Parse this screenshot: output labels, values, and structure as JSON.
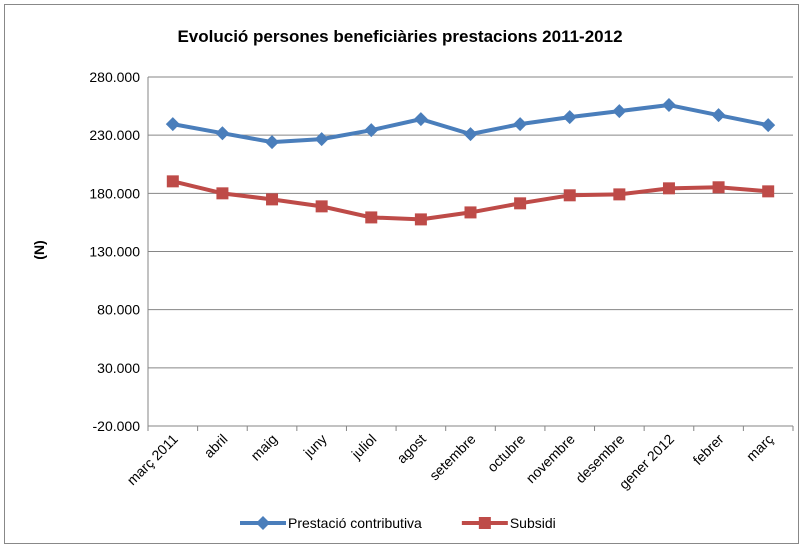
{
  "chart_data": {
    "type": "line",
    "title": "Evolució persones beneficiàries prestacions 2011-2012",
    "y_label": "(N)",
    "categories": [
      "març 2011",
      "abril",
      "maig",
      "juny",
      "juliol",
      "agost",
      "setembre",
      "octubre",
      "novembre",
      "desembre",
      "gener 2012",
      "febrer",
      "març"
    ],
    "series": [
      {
        "name": "Prestació contributiva",
        "color": "#4a7ebb",
        "marker": "diamond",
        "values": [
          239500,
          231700,
          224000,
          226600,
          234300,
          243800,
          230900,
          239500,
          245500,
          250700,
          255900,
          247200,
          238600
        ]
      },
      {
        "name": "Subsidi",
        "color": "#be4b48",
        "marker": "square",
        "values": [
          190300,
          180000,
          174800,
          168800,
          159300,
          157600,
          163600,
          171400,
          178300,
          179100,
          184300,
          185200,
          181700
        ]
      }
    ],
    "ylim": [
      -20000,
      280000
    ],
    "yticks": [
      {
        "value": -20000,
        "label": "-20.000"
      },
      {
        "value": 30000,
        "label": "30.000"
      },
      {
        "value": 80000,
        "label": "80.000"
      },
      {
        "value": 130000,
        "label": "130.000"
      },
      {
        "value": 180000,
        "label": "180.000"
      },
      {
        "value": 230000,
        "label": "230.000"
      },
      {
        "value": 280000,
        "label": "280.000"
      }
    ],
    "grid": true,
    "legend": "bottom"
  }
}
